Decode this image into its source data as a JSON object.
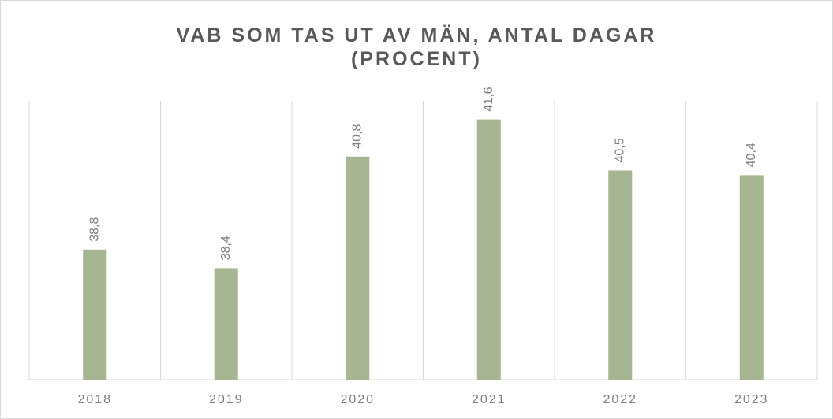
{
  "chart_data": {
    "type": "bar",
    "title": "VAB SOM TAS UT AV MÄN, ANTAL DAGAR (PROCENT)",
    "categories": [
      "2018",
      "2019",
      "2020",
      "2021",
      "2022",
      "2023"
    ],
    "values": [
      38.8,
      38.4,
      40.8,
      41.6,
      40.5,
      40.4
    ],
    "value_labels": [
      "38,8",
      "38,4",
      "40,8",
      "41,6",
      "40,5",
      "40,4"
    ],
    "color": "#a6b592",
    "ylim": [
      36,
      42
    ]
  }
}
